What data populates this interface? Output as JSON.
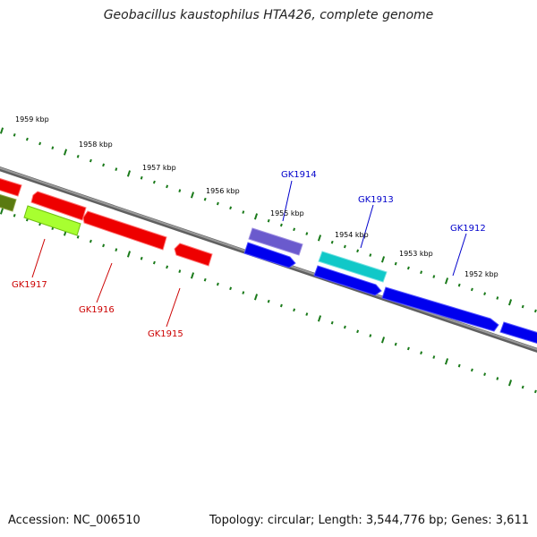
{
  "title": "Geobacillus kaustophilus HTA426, complete genome",
  "footer": {
    "accession": "Accession: NC_006510",
    "stats": "Topology: circular; Length: 3,544,776 bp; Genes: 3,611"
  },
  "colors": {
    "forward_gene": "#0000ee",
    "reverse_gene": "#ff0000",
    "label_forward": "#0000cc",
    "label_reverse": "#cc0000",
    "backbone": "#808080",
    "ticks": "#1a7a1a"
  },
  "kbp_labels": [
    "1959 kbp",
    "1958 kbp",
    "1957 kbp",
    "1956 kbp",
    "1955 kbp",
    "1954 kbp",
    "1953 kbp",
    "1952 kbp"
  ],
  "gene_labels": {
    "gk1914": "GK1914",
    "gk1913": "GK1913",
    "gk1912": "GK1912",
    "gk1917": "GK1917",
    "gk1916": "GK1916",
    "gk1915": "GK1915"
  }
}
